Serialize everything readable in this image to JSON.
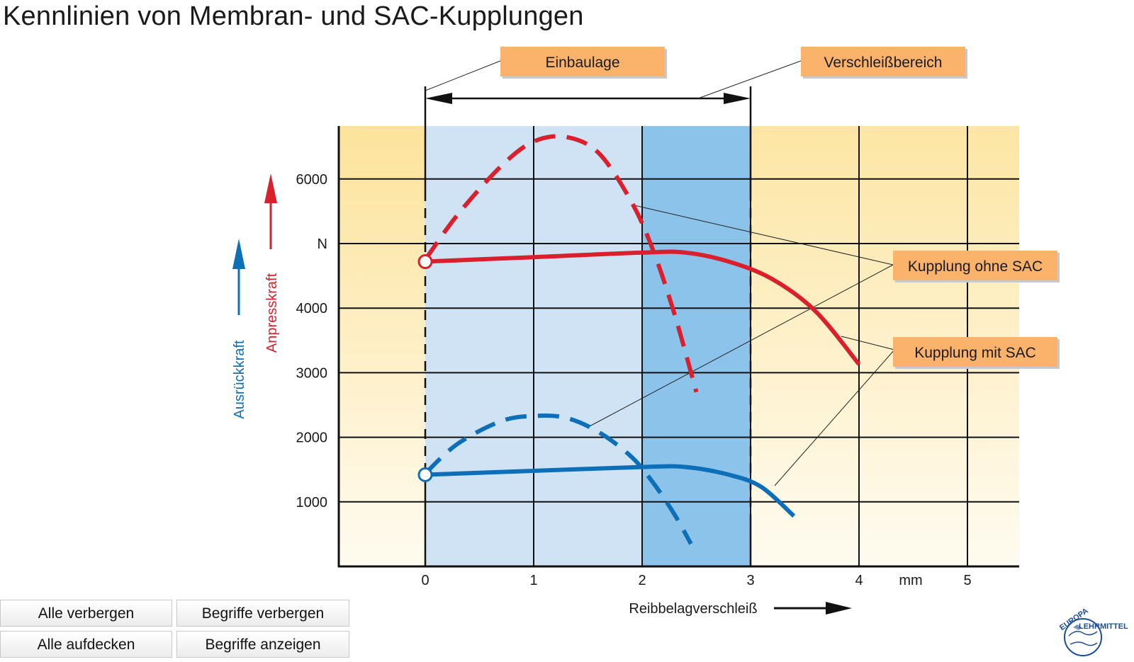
{
  "title": "Kennlinien von Membran- und SAC-Kupplungen",
  "buttons": {
    "alle_verbergen": "Alle verbergen",
    "begriffe_verbergen": "Begriffe verbergen",
    "alle_aufdecken": "Alle aufdecken",
    "begriffe_anzeigen": "Begriffe anzeigen"
  },
  "logo": {
    "line1": "EUROPA",
    "line2": "LEHRMITTEL"
  },
  "colors": {
    "red": "#d9202c",
    "blue": "#0d6fb8",
    "label_bg": "#fbb26a",
    "zone_outer": "#fdf0bf",
    "zone_light_blue": "#cfe3f5",
    "zone_dark_blue": "#8cc3ea"
  },
  "chart_data": {
    "type": "line",
    "x": {
      "label": "Reibbelagverschleiß",
      "unit": "mm",
      "ticks": [
        "0",
        "1",
        "2",
        "3",
        "4",
        "5"
      ],
      "range": [
        -0.8,
        5.5
      ]
    },
    "y": {
      "unit": "N",
      "ticks": [
        "1000",
        "2000",
        "3000",
        "4000",
        "6000"
      ],
      "range": [
        0,
        6800
      ],
      "label_red": "Anpresskraft",
      "label_blue": "Ausrückkraft"
    },
    "zones": [
      {
        "name": "Einbaulage",
        "from": 0,
        "to": 2
      },
      {
        "name": "Verschleißbereich",
        "from": 2,
        "to": 3
      }
    ],
    "annotations": [
      "Einbaulage",
      "Verschleißbereich",
      "Kupplung ohne SAC",
      "Kupplung mit SAC"
    ],
    "series": [
      {
        "name": "Anpresskraft – Kupplung ohne SAC",
        "color": "red",
        "style": "dashed",
        "points": [
          [
            0,
            4750
          ],
          [
            0.3,
            5450
          ],
          [
            0.7,
            6200
          ],
          [
            1.0,
            6580
          ],
          [
            1.3,
            6650
          ],
          [
            1.6,
            6400
          ],
          [
            1.9,
            5650
          ],
          [
            2.1,
            4900
          ],
          [
            2.3,
            3900
          ],
          [
            2.5,
            2700
          ]
        ]
      },
      {
        "name": "Anpresskraft – Kupplung mit SAC",
        "color": "red",
        "style": "solid",
        "points": [
          [
            0,
            4720
          ],
          [
            1.0,
            4790
          ],
          [
            2.0,
            4860
          ],
          [
            2.4,
            4860
          ],
          [
            2.8,
            4720
          ],
          [
            3.2,
            4450
          ],
          [
            3.6,
            3950
          ],
          [
            4.0,
            3130
          ]
        ]
      },
      {
        "name": "Ausrückkraft – Kupplung ohne SAC",
        "color": "blue",
        "style": "dashed",
        "points": [
          [
            0,
            1440
          ],
          [
            0.3,
            1900
          ],
          [
            0.7,
            2250
          ],
          [
            1.0,
            2330
          ],
          [
            1.3,
            2300
          ],
          [
            1.6,
            2080
          ],
          [
            1.9,
            1700
          ],
          [
            2.1,
            1300
          ],
          [
            2.3,
            800
          ],
          [
            2.45,
            350
          ]
        ]
      },
      {
        "name": "Ausrückkraft – Kupplung mit SAC",
        "color": "blue",
        "style": "solid",
        "points": [
          [
            0,
            1420
          ],
          [
            1.0,
            1480
          ],
          [
            2.0,
            1540
          ],
          [
            2.4,
            1540
          ],
          [
            2.8,
            1420
          ],
          [
            3.1,
            1230
          ],
          [
            3.4,
            780
          ]
        ]
      }
    ]
  }
}
